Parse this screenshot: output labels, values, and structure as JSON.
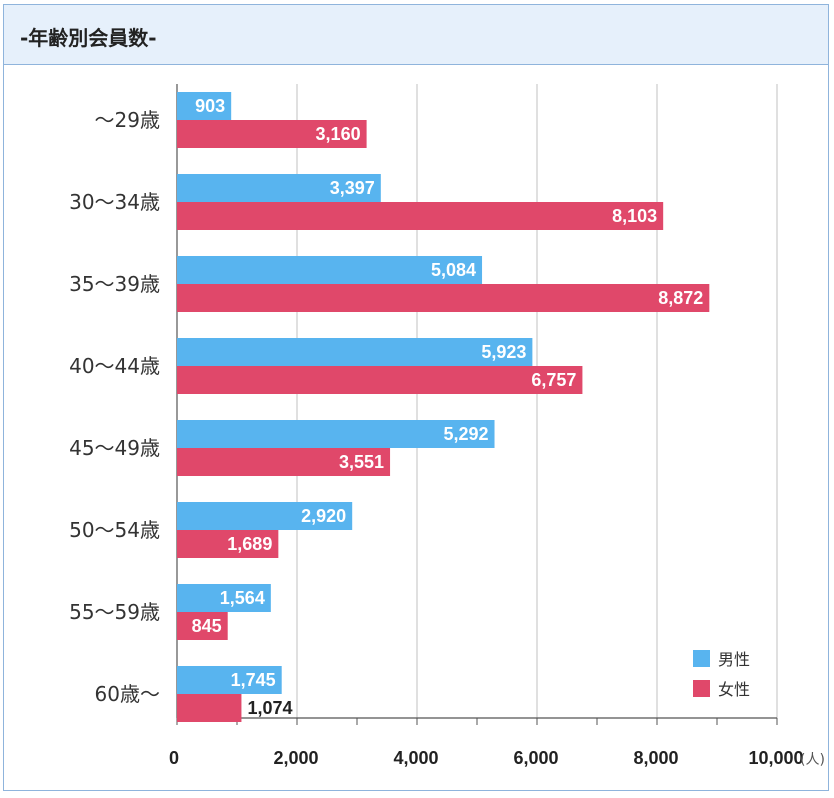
{
  "header": {
    "title": "-年齢別会員数-"
  },
  "chart_data": {
    "type": "bar",
    "orientation": "horizontal",
    "title": "",
    "categories": [
      "～29歳",
      "30～34歳",
      "35～39歳",
      "40～44歳",
      "45～49歳",
      "50～54歳",
      "55～59歳",
      "60歳～"
    ],
    "series": [
      {
        "name": "男性",
        "color": "#58b4ef",
        "values": [
          903,
          3397,
          5084,
          5923,
          5292,
          2920,
          1564,
          1745
        ]
      },
      {
        "name": "女性",
        "color": "#e0486a",
        "values": [
          3160,
          8103,
          8872,
          6757,
          3551,
          1689,
          845,
          1074
        ]
      }
    ],
    "value_labels": {
      "男性": [
        "903",
        "3,397",
        "5,084",
        "5,923",
        "5,292",
        "2,920",
        "1,564",
        "1,745"
      ],
      "女性": [
        "3,160",
        "8,103",
        "8,872",
        "6,757",
        "3,551",
        "1,689",
        "845",
        "1,074"
      ]
    },
    "xlim": [
      0,
      10000
    ],
    "x_ticks": [
      0,
      2000,
      4000,
      6000,
      8000,
      10000
    ],
    "x_tick_labels": [
      "0",
      "2,000",
      "4,000",
      "6,000",
      "8,000",
      "10,000"
    ],
    "x_unit": "(人)",
    "grid": true,
    "legend_position": "bottom-right"
  }
}
